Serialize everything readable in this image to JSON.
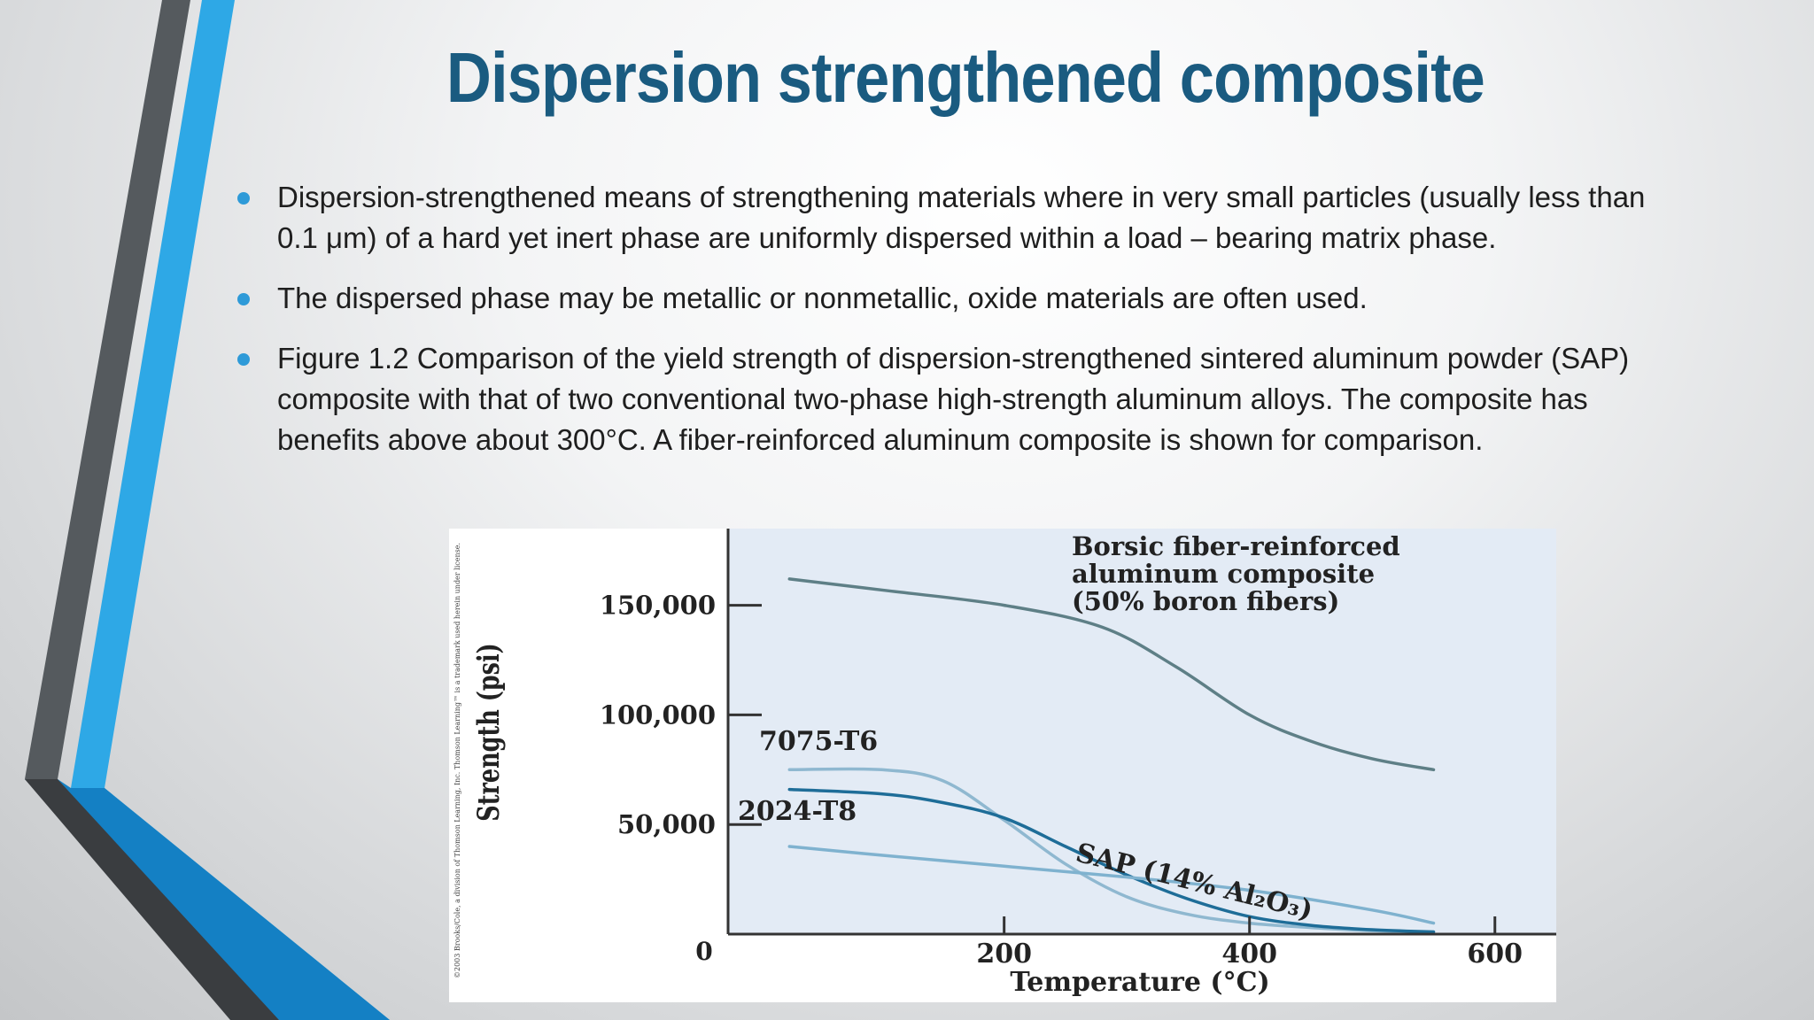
{
  "slide": {
    "title": "Dispersion strengthened composite",
    "bullets": [
      "Dispersion-strengthened means of strengthening materials where in very small particles (usually less than 0.1 μm) of a hard yet inert phase are uniformly dispersed within a load – bearing matrix phase.",
      "The dispersed phase may be metallic or nonmetallic, oxide materials are often used.",
      "Figure 1.2  Comparison of the yield strength of dispersion-strengthened sintered aluminum powder (SAP) composite with that of two conventional two-phase high-strength aluminum alloys.  The composite has benefits above about 300°C. A fiber-reinforced aluminum composite is shown for comparison."
    ],
    "bullet_color": "#2e9ad8",
    "title_color": "#1a5b80",
    "accent_colors": [
      "#2ea8e6",
      "#555a5e",
      "#1480c4"
    ]
  },
  "chart_data": {
    "type": "line",
    "xlabel": "Temperature (°C)",
    "ylabel": "Strength (psi)",
    "xlim": [
      -25,
      650
    ],
    "ylim": [
      0,
      185000
    ],
    "x_ticks": [
      200,
      400,
      600
    ],
    "x_tick_labels": [
      "200",
      "400",
      "600"
    ],
    "y_ticks": [
      50000,
      100000,
      150000
    ],
    "y_tick_labels": [
      "50,000",
      "100,000",
      "150,000"
    ],
    "origin_label": "0",
    "grid": false,
    "background": "#e3ebf5",
    "series": [
      {
        "name": "Borsic fiber-reinforced aluminum composite (50% boron fibers)",
        "label_lines": [
          "Borsic fiber-reinforced",
          "aluminum composite",
          "(50% boron fibers)"
        ],
        "color": "#5e7f86",
        "x": [
          25,
          100,
          200,
          280,
          340,
          400,
          450,
          500,
          550
        ],
        "y": [
          162000,
          157000,
          150000,
          140000,
          122000,
          100000,
          88000,
          80000,
          75000
        ]
      },
      {
        "name": "7075-T6",
        "color": "#8fb8d0",
        "x": [
          25,
          100,
          150,
          200,
          250,
          300,
          350,
          400,
          450,
          500,
          550
        ],
        "y": [
          75000,
          75000,
          70000,
          52000,
          32000,
          17000,
          9000,
          5000,
          3000,
          1500,
          1000
        ]
      },
      {
        "name": "2024-T8",
        "color": "#1e6d98",
        "x": [
          25,
          100,
          150,
          200,
          250,
          300,
          350,
          400,
          450,
          500,
          550
        ],
        "y": [
          66000,
          64000,
          60000,
          53000,
          40000,
          27000,
          16000,
          8000,
          4000,
          2000,
          1000
        ]
      },
      {
        "name": "SAP (14% Al2O3)",
        "label": "SAP (14% Al₂O₃)",
        "color": "#7fb2cf",
        "x": [
          25,
          100,
          200,
          300,
          400,
          500,
          550
        ],
        "y": [
          40000,
          36000,
          31000,
          26000,
          20000,
          11000,
          5000
        ]
      }
    ],
    "copyright": "©2003 Brooks/Cole, a division of Thomson Learning, Inc. Thomson Learning™ is a trademark used herein under license."
  }
}
